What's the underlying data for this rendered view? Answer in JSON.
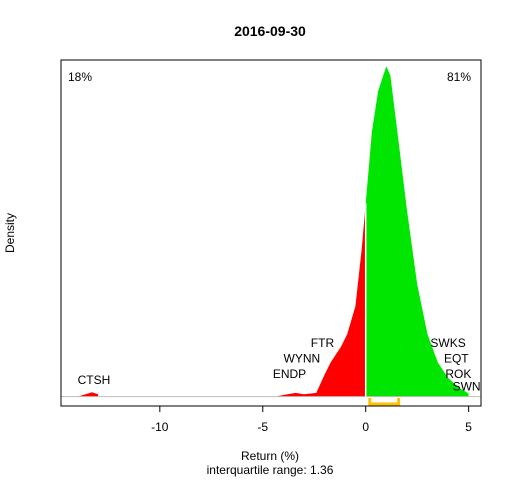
{
  "chart_data": {
    "type": "area",
    "title": "2016-09-30",
    "xlabel": "Return (%)",
    "subtitle": "interquartile range: 1.36",
    "ylabel": "Density",
    "xlim": [
      -14.8,
      5.6
    ],
    "x_ticks": [
      -10,
      -5,
      0,
      5
    ],
    "x_tick_labels": [
      "-10",
      "-5",
      "0",
      "5"
    ],
    "negative_pct_label": "18%",
    "positive_pct_label": "81%",
    "negative_color": "#ff0000",
    "positive_color": "#00e600",
    "negative_label_color": "#cc0000",
    "positive_label_color": "#008000",
    "iqr_color": "#ffc000",
    "iqr": [
      0.2,
      1.6
    ],
    "series": [
      {
        "values": [
          [
            -14.0,
            0.0
          ],
          [
            -13.6,
            0.008
          ],
          [
            -13.3,
            0.014
          ],
          [
            -13.0,
            0.008
          ],
          [
            -12.7,
            0.0
          ],
          [
            -4.4,
            0.0
          ],
          [
            -3.8,
            0.008
          ],
          [
            -3.4,
            0.012
          ],
          [
            -3.0,
            0.008
          ],
          [
            -2.4,
            0.012
          ],
          [
            -2.0,
            0.07
          ],
          [
            -1.7,
            0.11
          ],
          [
            -1.2,
            0.16
          ],
          [
            -0.9,
            0.2
          ],
          [
            -0.5,
            0.29
          ],
          [
            -0.2,
            0.47
          ],
          [
            0.0,
            0.62
          ],
          [
            0.0,
            0.0
          ],
          [
            0.0,
            0.62
          ],
          [
            0.3,
            0.85
          ],
          [
            0.6,
            0.98
          ],
          [
            1.0,
            1.06
          ],
          [
            1.2,
            1.03
          ],
          [
            1.5,
            0.87
          ],
          [
            2.0,
            0.6
          ],
          [
            2.5,
            0.36
          ],
          [
            3.0,
            0.2
          ],
          [
            3.5,
            0.11
          ],
          [
            4.0,
            0.06
          ],
          [
            4.5,
            0.03
          ],
          [
            5.0,
            0.01
          ],
          [
            5.4,
            0.0
          ]
        ]
      }
    ],
    "annotations": [
      {
        "text": "CTSH",
        "x": -13.2,
        "y": 0.04
      },
      {
        "text": "FTR",
        "x": -2.1,
        "y": 0.16
      },
      {
        "text": "WYNN",
        "x": -3.1,
        "y": 0.11
      },
      {
        "text": "ENDP",
        "x": -3.7,
        "y": 0.06
      },
      {
        "text": "SWKS",
        "x": 4.0,
        "y": 0.16
      },
      {
        "text": "EQT",
        "x": 4.4,
        "y": 0.11
      },
      {
        "text": "ROK",
        "x": 4.5,
        "y": 0.06
      },
      {
        "text": "SWN",
        "x": 4.9,
        "y": 0.02
      }
    ],
    "ylim": [
      -0.03,
      1.08
    ]
  }
}
